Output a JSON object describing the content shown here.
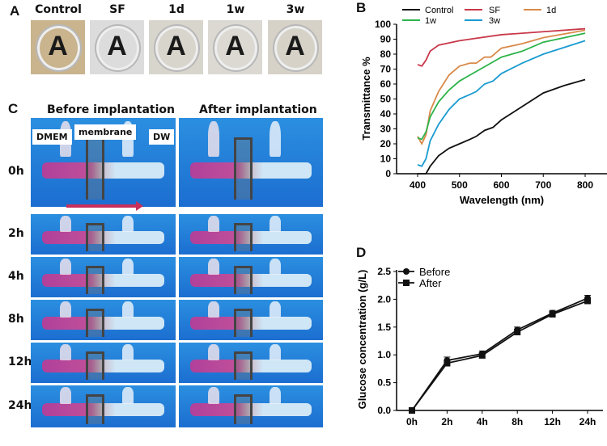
{
  "panel_a": {
    "label": "A",
    "samples": [
      {
        "title": "Control",
        "letter": "A",
        "tint": "#c9b48e"
      },
      {
        "title": "SF",
        "letter": "A",
        "tint": "#dcdcdc"
      },
      {
        "title": "1d",
        "letter": "A",
        "tint": "#d8d5cc"
      },
      {
        "title": "1w",
        "letter": "A",
        "tint": "#dbd9d2"
      },
      {
        "title": "3w",
        "letter": "A",
        "tint": "#d6d2c8"
      }
    ]
  },
  "panel_c": {
    "label": "C",
    "before_title": "Before implantation",
    "after_title": "After implantation",
    "callouts": {
      "dmem": "DMEM",
      "membrane": "membrane",
      "dw": "DW"
    },
    "rows": [
      "0h",
      "2h",
      "4h",
      "8h",
      "12h",
      "24h"
    ]
  },
  "chart_data": [
    {
      "panel": "B",
      "type": "line",
      "title": "",
      "xlabel": "Wavelength (nm)",
      "ylabel": "Transmittance %",
      "xlim": [
        350,
        850
      ],
      "ylim": [
        0,
        100
      ],
      "xticks": [
        400,
        500,
        600,
        700,
        800
      ],
      "yticks": [
        0,
        10,
        20,
        30,
        40,
        50,
        60,
        70,
        80,
        90,
        100
      ],
      "legend_position": "top",
      "grid": false,
      "series": [
        {
          "name": "Control",
          "color": "#111111",
          "x": [
            400,
            420,
            430,
            450,
            475,
            500,
            525,
            540,
            560,
            580,
            600,
            650,
            700,
            750,
            800
          ],
          "y": [
            0,
            0,
            5,
            12,
            17,
            20,
            23,
            25,
            29,
            31,
            36,
            45,
            54,
            59,
            63
          ]
        },
        {
          "name": "SF",
          "color": "#c8384a",
          "x": [
            400,
            410,
            420,
            430,
            450,
            500,
            550,
            600,
            700,
            800
          ],
          "y": [
            73,
            72,
            76,
            82,
            86,
            89,
            91,
            93,
            95,
            97
          ]
        },
        {
          "name": "1d",
          "color": "#d98a4a",
          "x": [
            400,
            410,
            420,
            430,
            450,
            475,
            500,
            525,
            540,
            560,
            575,
            600,
            650,
            700,
            800
          ],
          "y": [
            25,
            20,
            26,
            42,
            55,
            66,
            72,
            74,
            74,
            78,
            78,
            84,
            87,
            91,
            96
          ]
        },
        {
          "name": "1w",
          "color": "#2cb34a",
          "x": [
            400,
            410,
            420,
            430,
            450,
            475,
            500,
            525,
            550,
            575,
            600,
            650,
            700,
            800
          ],
          "y": [
            24,
            23,
            28,
            38,
            48,
            56,
            62,
            66,
            70,
            74,
            78,
            82,
            88,
            94
          ]
        },
        {
          "name": "3w",
          "color": "#1a9bd0",
          "x": [
            400,
            410,
            420,
            430,
            450,
            475,
            500,
            525,
            540,
            560,
            580,
            600,
            650,
            700,
            800
          ],
          "y": [
            6,
            5,
            10,
            22,
            33,
            43,
            50,
            53,
            55,
            60,
            62,
            67,
            74,
            80,
            89
          ]
        }
      ]
    },
    {
      "panel": "D",
      "type": "line",
      "title": "",
      "xlabel": "",
      "ylabel": "Glucose concentration (g/L)",
      "categories": [
        "0h",
        "2h",
        "4h",
        "8h",
        "12h",
        "24h"
      ],
      "ylim": [
        0,
        2.5
      ],
      "yticks": [
        "0.0",
        "0.5",
        "1.0",
        "1.5",
        "2.0",
        "2.5"
      ],
      "legend_position": "top-left",
      "grid": false,
      "series": [
        {
          "name": "Before",
          "marker": "circle",
          "values": [
            0,
            0.9,
            1.02,
            1.45,
            1.75,
            2.02
          ],
          "error": [
            0.02,
            0.06,
            0.05,
            0.05,
            0.05,
            0.05
          ]
        },
        {
          "name": "After",
          "marker": "square",
          "values": [
            0,
            0.85,
            0.99,
            1.41,
            1.73,
            1.97
          ],
          "error": [
            0.02,
            0.05,
            0.04,
            0.05,
            0.05,
            0.05
          ]
        }
      ]
    }
  ]
}
